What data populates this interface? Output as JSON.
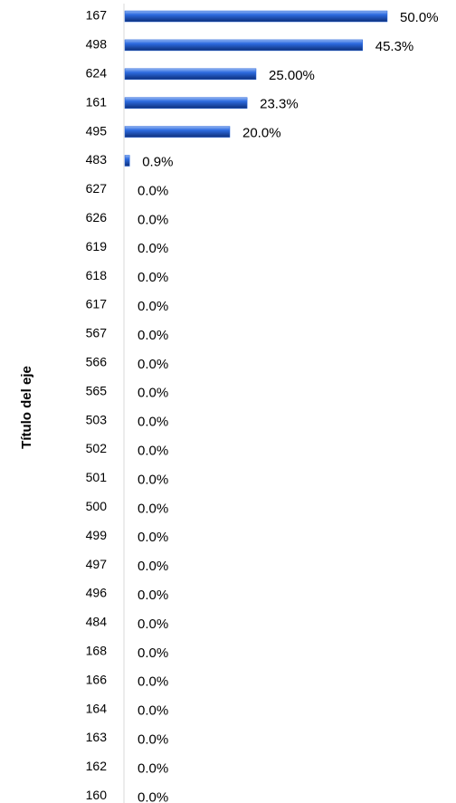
{
  "chart_data": {
    "type": "bar",
    "orientation": "horizontal",
    "axis_title": "Título del eje",
    "categories": [
      "167",
      "498",
      "624",
      "161",
      "495",
      "483",
      "627",
      "626",
      "619",
      "618",
      "617",
      "567",
      "566",
      "565",
      "503",
      "502",
      "501",
      "500",
      "499",
      "497",
      "496",
      "484",
      "168",
      "166",
      "164",
      "163",
      "162",
      "160"
    ],
    "values": [
      50,
      45.3,
      25,
      23.3,
      20,
      0.9,
      0,
      0,
      0,
      0,
      0,
      0,
      0,
      0,
      0,
      0,
      0,
      0,
      0,
      0,
      0,
      0,
      0,
      0,
      0,
      0,
      0,
      0
    ],
    "value_labels": [
      "50.0%",
      "45.3%",
      "25.00%",
      "23.3%",
      "20.0%",
      "0.9%",
      "0.0%",
      "0.0%",
      "0.0%",
      "0.0%",
      "0.0%",
      "0.0%",
      "0.0%",
      "0.0%",
      "0.0%",
      "0.0%",
      "0.0%",
      "0.0%",
      "0.0%",
      "0.0%",
      "0.0%",
      "0.0%",
      "0.0%",
      "0.0%",
      "0.0%",
      "0.0%",
      "0.0%",
      "0.0%"
    ],
    "color": "#2563d9"
  }
}
